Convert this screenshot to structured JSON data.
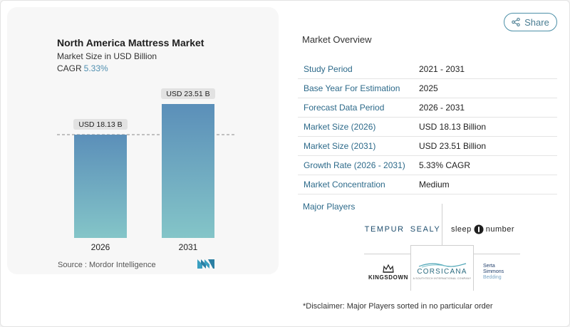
{
  "chart": {
    "title": "North America Mattress Market",
    "subtitle": "Market Size in USD Billion",
    "cagr_label": "CAGR",
    "cagr_value": "5.33%",
    "source": "Source :  Mordor Intelligence"
  },
  "chart_data": {
    "type": "bar",
    "categories": [
      "2026",
      "2031"
    ],
    "values": [
      18.13,
      23.51
    ],
    "data_labels": [
      "USD 18.13 B",
      "USD 23.51 B"
    ],
    "title": "North America Mattress Market",
    "subtitle": "Market Size in USD Billion",
    "xlabel": "",
    "ylabel": "",
    "grid": false,
    "colors": {
      "bar_top": "#5b8fb9",
      "bar_bottom": "#84c5c8"
    }
  },
  "share": {
    "label": "Share",
    "icon": "share-icon"
  },
  "overview": {
    "title": "Market Overview",
    "rows": [
      {
        "label": "Study Period",
        "value": "2021 - 2031"
      },
      {
        "label": "Base Year For Estimation",
        "value": "2025"
      },
      {
        "label": "Forecast Data Period",
        "value": "2026 - 2031"
      },
      {
        "label": "Market Size (2026)",
        "value": "USD 18.13 Billion"
      },
      {
        "label": "Market Size (2031)",
        "value": "USD 23.51 Billion"
      },
      {
        "label": "Growth Rate (2026 - 2031)",
        "value": "5.33% CAGR"
      },
      {
        "label": "Market Concentration",
        "value": "Medium"
      }
    ]
  },
  "players": {
    "title": "Major Players",
    "tempur": {
      "left": "TEMPUR",
      "right": "SEALY"
    },
    "sleep_number": {
      "left": "sleep",
      "right": "number"
    },
    "kingsdown": "KINGSDOWN",
    "corsicana": {
      "name": "CORSICANA",
      "tagline": "A SOUTHTECH INTERNATIONAL COMPANY"
    },
    "serta": {
      "line1": "Serta",
      "line2": "Simmons",
      "line3": "Bedding"
    }
  },
  "disclaimer": "*Disclaimer: Major Players sorted in no particular order",
  "colors": {
    "accent": "#2d6a8a",
    "share_border": "#4d90a8",
    "cagr": "#4f8fb0"
  }
}
